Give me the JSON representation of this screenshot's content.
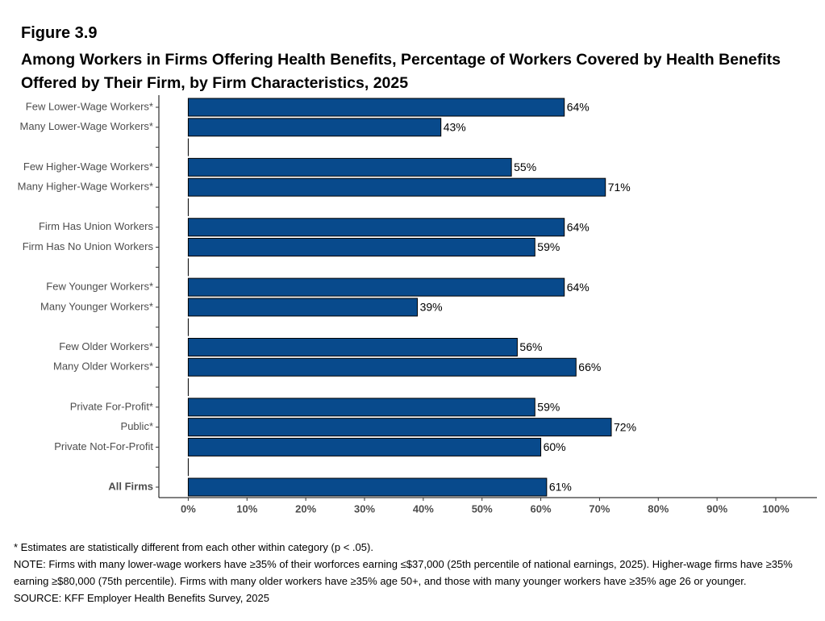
{
  "chart_data": {
    "type": "hbar",
    "figure_label": "Figure 3.9",
    "title": "Among Workers in Firms Offering Health Benefits, Percentage of Workers Covered by Health Benefits Offered by Their Firm, by Firm Characteristics, 2025",
    "categories": [
      "Few Lower-Wage Workers*",
      "Many Lower-Wage Workers*",
      null,
      "Few Higher-Wage Workers*",
      "Many Higher-Wage Workers*",
      null,
      "Firm Has Union Workers",
      "Firm Has No Union Workers",
      null,
      "Few Younger Workers*",
      "Many Younger Workers*",
      null,
      "Few Older Workers*",
      "Many Older Workers*",
      null,
      "Private For-Profit*",
      "Public*",
      "Private Not-For-Profit",
      null,
      "All Firms"
    ],
    "values": [
      64,
      43,
      null,
      55,
      71,
      null,
      64,
      59,
      null,
      64,
      39,
      null,
      56,
      66,
      null,
      59,
      72,
      60,
      null,
      61
    ],
    "value_labels": [
      "64%",
      "43%",
      null,
      "55%",
      "71%",
      null,
      "64%",
      "59%",
      null,
      "64%",
      "39%",
      null,
      "56%",
      "66%",
      null,
      "59%",
      "72%",
      "60%",
      null,
      "61%"
    ],
    "color": "#084a8c",
    "xlim": [
      -5,
      107
    ],
    "xticks": [
      {
        "value": 0,
        "label": "0%"
      },
      {
        "value": 10,
        "label": "10%"
      },
      {
        "value": 20,
        "label": "20%"
      },
      {
        "value": 30,
        "label": "30%"
      },
      {
        "value": 40,
        "label": "40%"
      },
      {
        "value": 50,
        "label": "50%"
      },
      {
        "value": 60,
        "label": "60%"
      },
      {
        "value": 70,
        "label": "70%"
      },
      {
        "value": 80,
        "label": "80%"
      },
      {
        "value": 90,
        "label": "90%"
      },
      {
        "value": 100,
        "label": "100%"
      }
    ],
    "notes": [
      "* Estimates are statistically different from each other within category (p < .05).",
      "NOTE: Firms with many lower-wage workers have ≥35% of their worforces earning ≤$37,000 (25th percentile of national earnings, 2025). Higher-wage firms have ≥35% earning ≥$80,000 (75th percentile). Firms with many older workers have ≥35% age 50+, and those with many younger workers have ≥35% age 26 or younger.",
      "SOURCE: KFF Employer Health Benefits Survey, 2025"
    ]
  }
}
